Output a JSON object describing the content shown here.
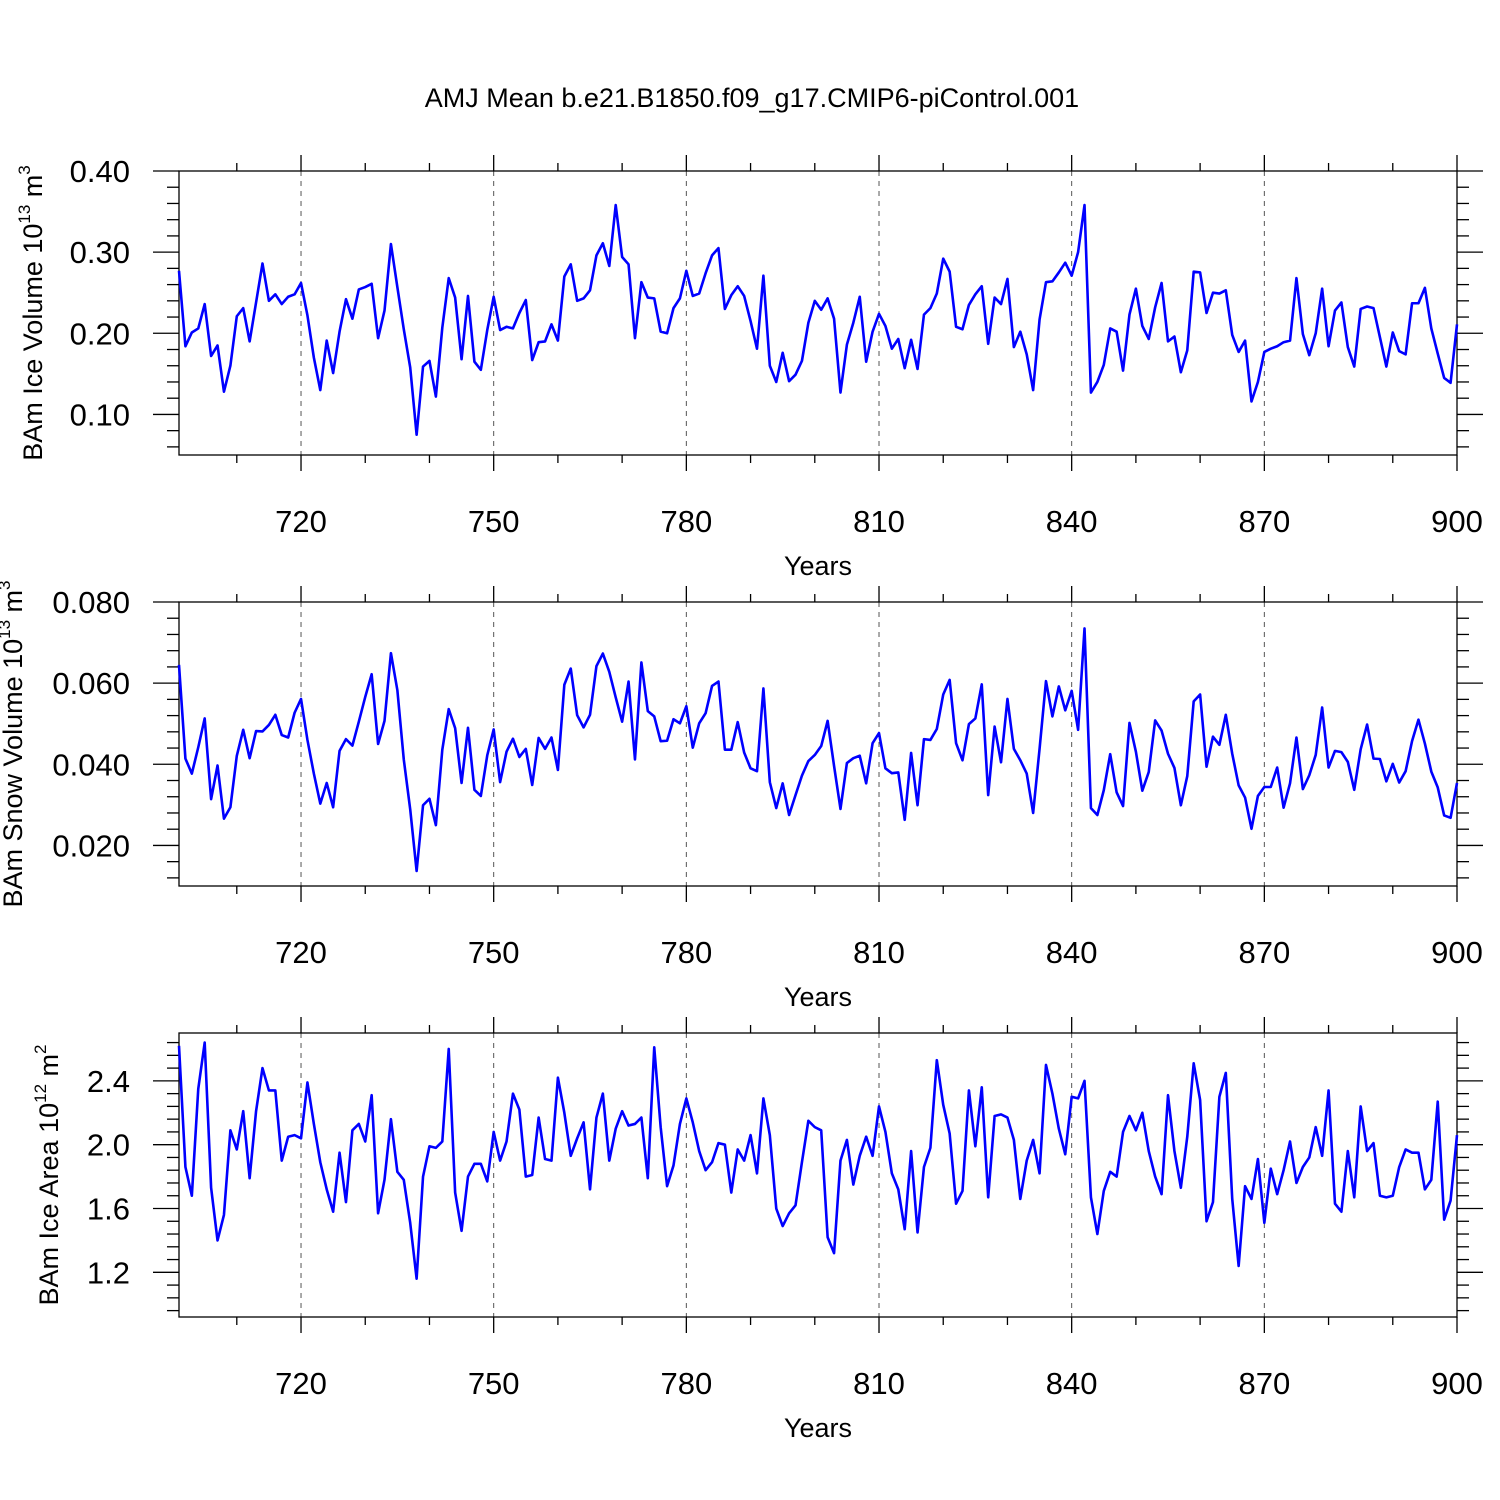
{
  "title": "AMJ Mean b.e21.B1850.f09_g17.CMIP6-piControl.001",
  "series_color": "#0000ff",
  "chart_data": [
    {
      "type": "line",
      "title": "AMJ Mean b.e21.B1850.f09_g17.CMIP6-piControl.001",
      "xlabel": "Years",
      "ylabel_prefix": "BAm Ice Volume 10",
      "ylabel_exp": "13",
      "ylabel_unit": " m",
      "ylabel_unit_exp": "3",
      "xlim": [
        701,
        900
      ],
      "ylim": [
        0.05,
        0.4
      ],
      "xticks": [
        720,
        750,
        780,
        810,
        840,
        870,
        900
      ],
      "xtick_labels": [
        "720",
        "750",
        "780",
        "810",
        "840",
        "870",
        "900"
      ],
      "xgrid": [
        720,
        750,
        780,
        810,
        840,
        870
      ],
      "yticks": [
        0.1,
        0.2,
        0.3,
        0.4
      ],
      "ytick_labels": [
        "0.10",
        "0.20",
        "0.30",
        "0.40"
      ],
      "series_name": "BAm Ice Volume",
      "x_start": 701,
      "values": [
        0.277,
        0.184,
        0.201,
        0.206,
        0.236,
        0.172,
        0.185,
        0.128,
        0.16,
        0.221,
        0.231,
        0.19,
        0.238,
        0.286,
        0.24,
        0.248,
        0.236,
        0.245,
        0.248,
        0.262,
        0.222,
        0.17,
        0.13,
        0.191,
        0.151,
        0.202,
        0.242,
        0.218,
        0.254,
        0.257,
        0.261,
        0.194,
        0.228,
        0.31,
        0.257,
        0.205,
        0.158,
        0.075,
        0.159,
        0.166,
        0.122,
        0.207,
        0.268,
        0.244,
        0.168,
        0.246,
        0.165,
        0.155,
        0.204,
        0.245,
        0.204,
        0.208,
        0.206,
        0.225,
        0.241,
        0.167,
        0.189,
        0.19,
        0.211,
        0.191,
        0.27,
        0.285,
        0.24,
        0.243,
        0.253,
        0.296,
        0.311,
        0.283,
        0.358,
        0.294,
        0.285,
        0.194,
        0.263,
        0.244,
        0.243,
        0.202,
        0.2,
        0.231,
        0.243,
        0.277,
        0.246,
        0.249,
        0.274,
        0.296,
        0.305,
        0.23,
        0.247,
        0.258,
        0.246,
        0.215,
        0.181,
        0.271,
        0.16,
        0.14,
        0.176,
        0.141,
        0.149,
        0.166,
        0.213,
        0.24,
        0.229,
        0.243,
        0.218,
        0.127,
        0.186,
        0.213,
        0.245,
        0.165,
        0.202,
        0.224,
        0.209,
        0.181,
        0.193,
        0.157,
        0.192,
        0.156,
        0.223,
        0.231,
        0.249,
        0.292,
        0.276,
        0.208,
        0.205,
        0.235,
        0.248,
        0.258,
        0.187,
        0.244,
        0.236,
        0.267,
        0.183,
        0.202,
        0.174,
        0.13,
        0.217,
        0.263,
        0.264,
        0.275,
        0.287,
        0.271,
        0.3,
        0.358,
        0.127,
        0.14,
        0.161,
        0.206,
        0.202,
        0.154,
        0.223,
        0.255,
        0.209,
        0.193,
        0.232,
        0.262,
        0.19,
        0.196,
        0.152,
        0.179,
        0.276,
        0.275,
        0.225,
        0.25,
        0.249,
        0.253,
        0.198,
        0.177,
        0.191,
        0.116,
        0.14,
        0.177,
        0.181,
        0.184,
        0.189,
        0.191,
        0.268,
        0.199,
        0.173,
        0.2,
        0.255,
        0.184,
        0.228,
        0.238,
        0.183,
        0.159,
        0.23,
        0.233,
        0.231,
        0.195,
        0.159,
        0.201,
        0.178,
        0.174,
        0.237,
        0.237,
        0.256,
        0.206,
        0.175,
        0.145,
        0.139,
        0.211
      ]
    },
    {
      "type": "line",
      "xlabel": "Years",
      "ylabel_prefix": "BAm Snow Volume 10",
      "ylabel_exp": "13",
      "ylabel_unit": " m",
      "ylabel_unit_exp": "3",
      "xlim": [
        701,
        900
      ],
      "ylim": [
        0.01,
        0.08
      ],
      "xticks": [
        720,
        750,
        780,
        810,
        840,
        870,
        900
      ],
      "xtick_labels": [
        "720",
        "750",
        "780",
        "810",
        "840",
        "870",
        "900"
      ],
      "xgrid": [
        720,
        750,
        780,
        810,
        840,
        870
      ],
      "yticks": [
        0.02,
        0.04,
        0.06,
        0.08
      ],
      "ytick_labels": [
        "0.020",
        "0.040",
        "0.060",
        "0.080"
      ],
      "series_name": "BAm Snow Volume",
      "x_start": 701,
      "values": [
        0.0645,
        0.0414,
        0.0377,
        0.0442,
        0.0513,
        0.0314,
        0.0397,
        0.0266,
        0.0294,
        0.0421,
        0.0485,
        0.0415,
        0.0482,
        0.0481,
        0.0497,
        0.0522,
        0.0472,
        0.0466,
        0.0527,
        0.0561,
        0.046,
        0.0377,
        0.0303,
        0.0354,
        0.0294,
        0.0433,
        0.0462,
        0.0446,
        0.0505,
        0.0566,
        0.0622,
        0.045,
        0.0507,
        0.0674,
        0.0583,
        0.0412,
        0.0289,
        0.0137,
        0.0299,
        0.0315,
        0.025,
        0.0436,
        0.0536,
        0.0489,
        0.0354,
        0.049,
        0.0337,
        0.0322,
        0.0422,
        0.0486,
        0.0356,
        0.0431,
        0.0463,
        0.0418,
        0.0438,
        0.0349,
        0.0465,
        0.0438,
        0.0466,
        0.0386,
        0.0596,
        0.0636,
        0.0521,
        0.0491,
        0.0522,
        0.0642,
        0.0673,
        0.0628,
        0.0565,
        0.0505,
        0.0604,
        0.0412,
        0.0651,
        0.0531,
        0.0518,
        0.0457,
        0.0458,
        0.0511,
        0.0501,
        0.0543,
        0.0441,
        0.0501,
        0.0526,
        0.0593,
        0.0604,
        0.0436,
        0.0436,
        0.0504,
        0.0429,
        0.039,
        0.0383,
        0.0587,
        0.0356,
        0.0292,
        0.0353,
        0.0275,
        0.0324,
        0.0372,
        0.0408,
        0.0423,
        0.0445,
        0.0507,
        0.0396,
        0.029,
        0.0403,
        0.0415,
        0.0421,
        0.0353,
        0.0452,
        0.0477,
        0.039,
        0.0378,
        0.038,
        0.0263,
        0.0428,
        0.0299,
        0.0462,
        0.046,
        0.0487,
        0.0572,
        0.0608,
        0.0452,
        0.041,
        0.0499,
        0.0513,
        0.0597,
        0.0324,
        0.0493,
        0.0405,
        0.0561,
        0.0438,
        0.041,
        0.0377,
        0.028,
        0.0438,
        0.0605,
        0.0518,
        0.0592,
        0.0533,
        0.0581,
        0.0485,
        0.0735,
        0.0292,
        0.0275,
        0.0336,
        0.0425,
        0.0331,
        0.0297,
        0.0502,
        0.0431,
        0.0335,
        0.0381,
        0.0508,
        0.0483,
        0.0426,
        0.0391,
        0.0299,
        0.0371,
        0.0555,
        0.0572,
        0.0394,
        0.0468,
        0.0448,
        0.0522,
        0.0426,
        0.0348,
        0.0318,
        0.0241,
        0.0322,
        0.0344,
        0.0344,
        0.0392,
        0.0293,
        0.0353,
        0.0466,
        0.0339,
        0.0373,
        0.0423,
        0.054,
        0.0392,
        0.0433,
        0.043,
        0.0406,
        0.0337,
        0.0437,
        0.0498,
        0.0414,
        0.0413,
        0.0358,
        0.0401,
        0.0355,
        0.0383,
        0.0457,
        0.051,
        0.0451,
        0.0382,
        0.0343,
        0.0274,
        0.0268,
        0.0354
      ]
    },
    {
      "type": "line",
      "xlabel": "Years",
      "ylabel_prefix": "BAm Ice Area 10",
      "ylabel_exp": "12",
      "ylabel_unit": " m",
      "ylabel_unit_exp": "2",
      "xlim": [
        701,
        900
      ],
      "ylim": [
        0.92,
        2.7
      ],
      "xticks": [
        720,
        750,
        780,
        810,
        840,
        870,
        900
      ],
      "xtick_labels": [
        "720",
        "750",
        "780",
        "810",
        "840",
        "870",
        "900"
      ],
      "xgrid": [
        720,
        750,
        780,
        810,
        840,
        870
      ],
      "yticks": [
        1.2,
        1.6,
        2.0,
        2.4
      ],
      "ytick_labels": [
        "1.2",
        "1.6",
        "2.0",
        "2.4"
      ],
      "series_name": "BAm Ice Area",
      "x_start": 701,
      "values": [
        2.62,
        1.86,
        1.68,
        2.35,
        2.64,
        1.73,
        1.4,
        1.56,
        2.09,
        1.97,
        2.21,
        1.79,
        2.21,
        2.48,
        2.34,
        2.34,
        1.9,
        2.05,
        2.06,
        2.04,
        2.39,
        2.13,
        1.89,
        1.72,
        1.58,
        1.95,
        1.64,
        2.09,
        2.13,
        2.02,
        2.31,
        1.57,
        1.78,
        2.16,
        1.83,
        1.78,
        1.51,
        1.16,
        1.8,
        1.99,
        1.98,
        2.02,
        2.6,
        1.7,
        1.46,
        1.8,
        1.88,
        1.88,
        1.77,
        2.08,
        1.9,
        2.02,
        2.32,
        2.22,
        1.8,
        1.81,
        2.17,
        1.91,
        1.9,
        2.42,
        2.2,
        1.93,
        2.04,
        2.14,
        1.72,
        2.17,
        2.32,
        1.9,
        2.1,
        2.21,
        2.12,
        2.13,
        2.17,
        1.79,
        2.61,
        2.11,
        1.74,
        1.87,
        2.13,
        2.29,
        2.14,
        1.96,
        1.84,
        1.89,
        2.01,
        2.0,
        1.7,
        1.97,
        1.9,
        2.06,
        1.82,
        2.29,
        2.06,
        1.6,
        1.49,
        1.57,
        1.62,
        1.89,
        2.15,
        2.11,
        2.09,
        1.42,
        1.32,
        1.9,
        2.03,
        1.75,
        1.93,
        2.05,
        1.93,
        2.24,
        2.08,
        1.82,
        1.72,
        1.47,
        1.96,
        1.45,
        1.86,
        1.98,
        2.53,
        2.25,
        2.07,
        1.63,
        1.71,
        2.34,
        1.99,
        2.36,
        1.67,
        2.18,
        2.19,
        2.17,
        2.03,
        1.66,
        1.9,
        2.03,
        1.82,
        2.5,
        2.32,
        2.1,
        1.94,
        2.3,
        2.29,
        2.4,
        1.67,
        1.44,
        1.71,
        1.83,
        1.8,
        2.08,
        2.18,
        2.09,
        2.2,
        1.96,
        1.8,
        1.69,
        2.31,
        1.96,
        1.73,
        2.05,
        2.51,
        2.28,
        1.52,
        1.64,
        2.3,
        2.45,
        1.66,
        1.24,
        1.74,
        1.66,
        1.91,
        1.51,
        1.85,
        1.69,
        1.84,
        2.02,
        1.76,
        1.86,
        1.92,
        2.11,
        1.93,
        2.34,
        1.63,
        1.58,
        1.96,
        1.67,
        2.24,
        1.96,
        2.01,
        1.68,
        1.67,
        1.68,
        1.86,
        1.97,
        1.95,
        1.95,
        1.72,
        1.78,
        2.27,
        1.53,
        1.65,
        2.06
      ]
    }
  ]
}
